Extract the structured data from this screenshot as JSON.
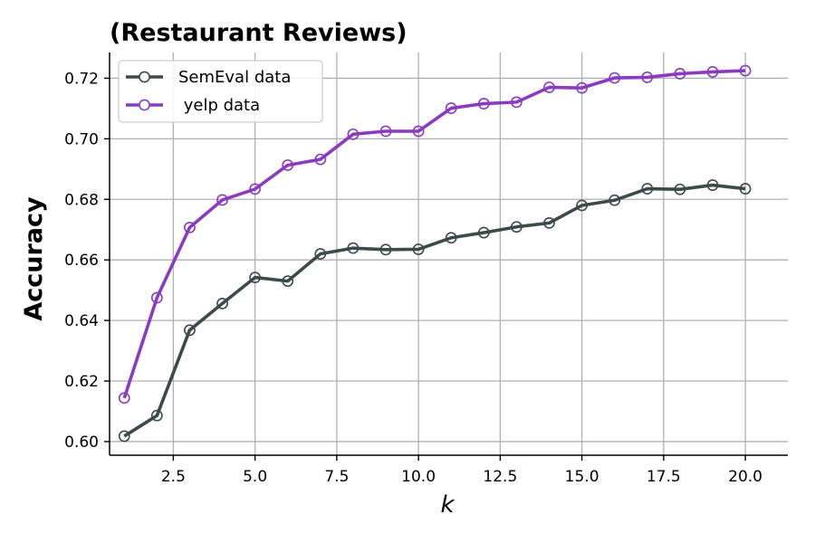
{
  "chart_data": {
    "type": "line",
    "title": "(Restaurant Reviews)",
    "xlabel": "k",
    "ylabel": "Accuracy",
    "xlim": [
      0.55,
      21.3
    ],
    "ylim": [
      0.5955,
      0.7285
    ],
    "xticks": [
      2.5,
      5.0,
      7.5,
      10.0,
      12.5,
      15.0,
      17.5,
      20.0
    ],
    "xtick_labels": [
      "2.5",
      "5.0",
      "7.5",
      "10.0",
      "12.5",
      "15.0",
      "17.5",
      "20.0"
    ],
    "yticks": [
      0.6,
      0.62,
      0.64,
      0.66,
      0.68,
      0.7,
      0.72
    ],
    "ytick_labels": [
      "0.60",
      "0.62",
      "0.64",
      "0.66",
      "0.68",
      "0.70",
      "0.72"
    ],
    "grid": true,
    "legend_position": "top-left",
    "x": [
      1,
      2,
      3,
      4,
      5,
      6,
      7,
      8,
      9,
      10,
      11,
      12,
      13,
      14,
      15,
      16,
      17,
      18,
      19,
      20
    ],
    "series": [
      {
        "name": "SemEval data",
        "color": "#3b4a4a",
        "marker": "open-circle",
        "values": [
          0.6018,
          0.6086,
          0.6368,
          0.6456,
          0.6542,
          0.653,
          0.662,
          0.6639,
          0.6634,
          0.6635,
          0.6673,
          0.669,
          0.6709,
          0.6722,
          0.678,
          0.6797,
          0.6835,
          0.6833,
          0.6847,
          0.6835
        ]
      },
      {
        "name": " yelp data",
        "color": "#8a3bc0",
        "marker": "open-circle",
        "values": [
          0.6144,
          0.6475,
          0.6707,
          0.6798,
          0.6834,
          0.6913,
          0.6932,
          0.7015,
          0.7025,
          0.7025,
          0.7101,
          0.7116,
          0.7121,
          0.717,
          0.7168,
          0.7201,
          0.7203,
          0.7215,
          0.7221,
          0.7225
        ]
      }
    ]
  }
}
